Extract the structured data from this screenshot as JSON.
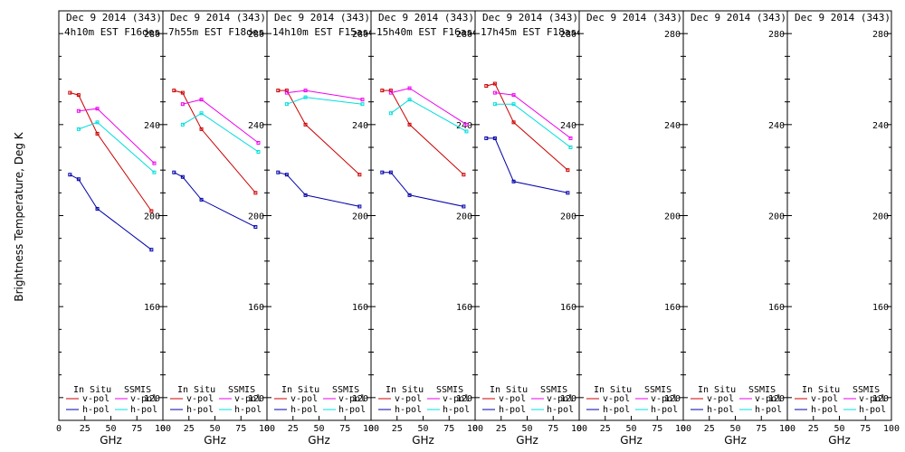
{
  "ylabel": "Brightness Temperature, Deg K",
  "xlabel": "GHz",
  "legend": {
    "insitu_label": "In Situ",
    "ssmis_label": "SSMIS",
    "vpol": "v-pol",
    "hpol": "h-pol",
    "colors": {
      "insitu_v": "#cc0000",
      "insitu_h": "#0000aa",
      "ssmis_v": "#ee00ee",
      "ssmis_h": "#00dddd"
    }
  },
  "chart_data": {
    "type": "line",
    "ylim": [
      110,
      290
    ],
    "xlim": [
      0,
      100
    ],
    "y_ticks": [
      120,
      160,
      200,
      240,
      280
    ],
    "x_ticks": [
      0,
      25,
      50,
      75,
      100
    ],
    "panels": [
      {
        "title_date": "Dec 9 2014 (343)",
        "title_pass": "4h10m EST F16des",
        "x_ticks": [
          0,
          25,
          50,
          75
        ],
        "series": [
          {
            "key": "insitu_v",
            "x": [
              10.7,
              19,
              37,
              89
            ],
            "y": [
              254,
              253,
              236,
              202
            ]
          },
          {
            "key": "insitu_h",
            "x": [
              10.7,
              19,
              37,
              89
            ],
            "y": [
              218,
              216,
              203,
              185
            ]
          },
          {
            "key": "ssmis_v",
            "x": [
              19,
              37,
              91.7
            ],
            "y": [
              246,
              247,
              223
            ]
          },
          {
            "key": "ssmis_h",
            "x": [
              19,
              37,
              91.7
            ],
            "y": [
              238,
              241,
              219
            ]
          }
        ]
      },
      {
        "title_date": "Dec 9 2014 (343)",
        "title_pass": "7h55m EST F18des",
        "x_ticks": [
          0,
          25,
          50,
          75
        ],
        "series": [
          {
            "key": "insitu_v",
            "x": [
              10.7,
              19,
              37,
              89
            ],
            "y": [
              255,
              254,
              238,
              210
            ]
          },
          {
            "key": "insitu_h",
            "x": [
              10.7,
              19,
              37,
              89
            ],
            "y": [
              219,
              217,
              207,
              195
            ]
          },
          {
            "key": "ssmis_v",
            "x": [
              19,
              37,
              91.7
            ],
            "y": [
              249,
              251,
              232
            ]
          },
          {
            "key": "ssmis_h",
            "x": [
              19,
              37,
              91.7
            ],
            "y": [
              240,
              245,
              228
            ]
          }
        ]
      },
      {
        "title_date": "Dec 9 2014 (343)",
        "title_pass": "14h10m EST F15asc",
        "x_ticks": [
          0,
          25,
          50,
          75
        ],
        "series": [
          {
            "key": "insitu_v",
            "x": [
              10.7,
              19,
              37,
              89
            ],
            "y": [
              255,
              255,
              240,
              218
            ]
          },
          {
            "key": "insitu_h",
            "x": [
              10.7,
              19,
              37,
              89
            ],
            "y": [
              219,
              218,
              209,
              204
            ]
          },
          {
            "key": "ssmis_v",
            "x": [
              19,
              37,
              91.7
            ],
            "y": [
              254,
              255,
              251
            ]
          },
          {
            "key": "ssmis_h",
            "x": [
              19,
              37,
              91.7
            ],
            "y": [
              249,
              252,
              249
            ]
          }
        ]
      },
      {
        "title_date": "Dec 9 2014 (343)",
        "title_pass": "15h40m EST F16asc",
        "x_ticks": [
          0,
          25,
          50,
          75
        ],
        "series": [
          {
            "key": "insitu_v",
            "x": [
              10.7,
              19,
              37,
              89
            ],
            "y": [
              255,
              255,
              240,
              218
            ]
          },
          {
            "key": "insitu_h",
            "x": [
              10.7,
              19,
              37,
              89
            ],
            "y": [
              219,
              219,
              209,
              204
            ]
          },
          {
            "key": "ssmis_v",
            "x": [
              19,
              37,
              91.7
            ],
            "y": [
              254,
              256,
              240
            ]
          },
          {
            "key": "ssmis_h",
            "x": [
              19,
              37,
              91.7
            ],
            "y": [
              245,
              251,
              237
            ]
          }
        ]
      },
      {
        "title_date": "Dec 9 2014 (343)",
        "title_pass": "17h45m EST F18asc",
        "x_ticks": [
          0,
          25,
          50,
          75
        ],
        "series": [
          {
            "key": "insitu_v",
            "x": [
              10.7,
              19,
              37,
              89
            ],
            "y": [
              257,
              258,
              241,
              220
            ]
          },
          {
            "key": "insitu_h",
            "x": [
              10.7,
              19,
              37,
              89
            ],
            "y": [
              234,
              234,
              215,
              210
            ]
          },
          {
            "key": "ssmis_v",
            "x": [
              19,
              37,
              91.7
            ],
            "y": [
              254,
              253,
              234
            ]
          },
          {
            "key": "ssmis_h",
            "x": [
              19,
              37,
              91.7
            ],
            "y": [
              249,
              249,
              230
            ]
          }
        ]
      },
      {
        "title_date": "Dec 9 2014 (343)",
        "title_pass": "",
        "x_ticks": [
          0,
          25,
          50,
          75
        ],
        "series": []
      },
      {
        "title_date": "Dec 9 2014 (343)",
        "title_pass": "",
        "x_ticks": [
          0,
          25,
          50,
          75
        ],
        "series": []
      },
      {
        "title_date": "Dec 9 2014 (343)",
        "title_pass": "",
        "x_ticks": [
          0,
          25,
          50,
          75,
          100
        ],
        "series": []
      }
    ]
  }
}
